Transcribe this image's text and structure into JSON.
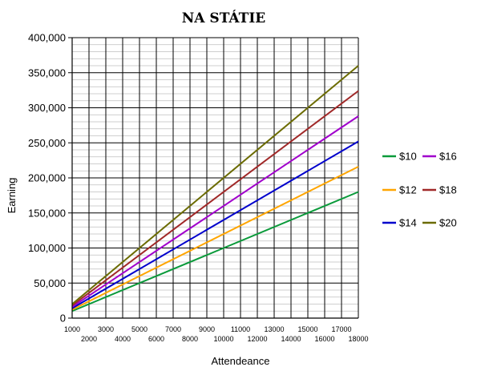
{
  "chart_data": {
    "type": "line",
    "title": "NA STÁTIE",
    "xlabel": "Attendeance",
    "ylabel": "Earning",
    "xlim": [
      1000,
      18000
    ],
    "ylim": [
      0,
      400000
    ],
    "x_ticks": [
      1000,
      2000,
      3000,
      4000,
      5000,
      6000,
      7000,
      8000,
      9000,
      10000,
      11000,
      12000,
      13000,
      14000,
      15000,
      16000,
      17000,
      18000
    ],
    "y_ticks": [
      0,
      50000,
      100000,
      150000,
      200000,
      250000,
      300000,
      350000,
      400000
    ],
    "y_tick_labels": [
      "0",
      "50,000",
      "100,000",
      "150,000",
      "200,000",
      "250,000",
      "300,000",
      "350,000",
      "400,000"
    ],
    "grid": true,
    "legend_position": "right",
    "x": [
      1000,
      18000
    ],
    "series": [
      {
        "name": "$10",
        "color": "#0a9a3a",
        "values": [
          10000,
          180000
        ]
      },
      {
        "name": "$12",
        "color": "#ffa500",
        "values": [
          12000,
          216000
        ]
      },
      {
        "name": "$14",
        "color": "#0000cc",
        "values": [
          14000,
          252000
        ]
      },
      {
        "name": "$16",
        "color": "#a000cc",
        "values": [
          16000,
          288000
        ]
      },
      {
        "name": "$18",
        "color": "#a02828",
        "values": [
          18000,
          324000
        ]
      },
      {
        "name": "$20",
        "color": "#6b6b00",
        "values": [
          20000,
          360000
        ]
      }
    ]
  }
}
